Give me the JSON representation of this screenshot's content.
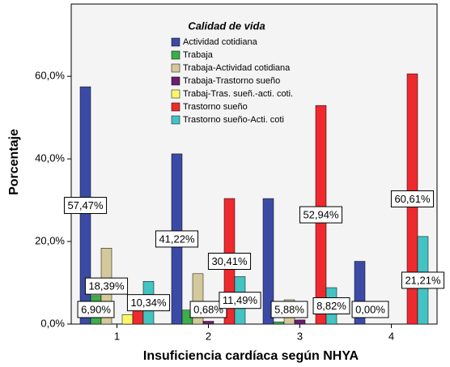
{
  "chart_data": {
    "type": "bar",
    "legend_title": "Calidad de vida",
    "x_label": "Insuficiencia cardíaca según NHYA",
    "y_label": "Porcentaje",
    "categories": [
      "1",
      "2",
      "3",
      "4"
    ],
    "ylim": [
      0,
      77.5
    ],
    "yticks": [
      {
        "value": 0,
        "label": "0,0%"
      },
      {
        "value": 20,
        "label": "20,0%"
      },
      {
        "value": 40,
        "label": "40,0%"
      },
      {
        "value": 60,
        "label": "60,0%"
      }
    ],
    "grid": false,
    "legend": "top",
    "series": [
      {
        "name": "Actividad cotidiana",
        "color": "#3b4ba5",
        "values": [
          57.47,
          41.22,
          30.4,
          15.2
        ],
        "value_labels": [
          "57,47%",
          "41,22%",
          null,
          null
        ]
      },
      {
        "name": "Trabaja",
        "color": "#3cae4a",
        "values": [
          6.9,
          3.4,
          0.5,
          0
        ],
        "value_labels": [
          "6,90%",
          null,
          null,
          "0,00%"
        ]
      },
      {
        "name": "Trabaja-Actividad cotidiana",
        "color": "#d4c99a",
        "values": [
          18.39,
          12.2,
          5.88,
          0
        ],
        "value_labels": [
          "18,39%",
          null,
          "5,88%",
          null
        ]
      },
      {
        "name": "Trabaja-Trastorno sueño",
        "color": "#6a1e6e",
        "values": [
          0,
          0.68,
          1,
          0
        ],
        "value_labels": [
          null,
          "0,68%",
          null,
          null
        ]
      },
      {
        "name": "Trabaj-Tras. sueñ.-acti. coti.",
        "color": "#faf86a",
        "values": [
          2.3,
          0,
          0,
          0
        ],
        "value_labels": [
          null,
          null,
          null,
          null
        ]
      },
      {
        "name": "Trastorno sueño",
        "color": "#ee2a2e",
        "values": [
          3.4,
          30.41,
          52.94,
          60.61
        ],
        "value_labels": [
          null,
          "30,41%",
          "52,94%",
          "60,61%"
        ]
      },
      {
        "name": "Trastorno sueño-Acti. coti",
        "color": "#44c3c3",
        "values": [
          10.34,
          11.49,
          8.82,
          21.21
        ],
        "value_labels": [
          "10,34%",
          "11,49%",
          "8,82%",
          "21,21%"
        ]
      }
    ]
  }
}
